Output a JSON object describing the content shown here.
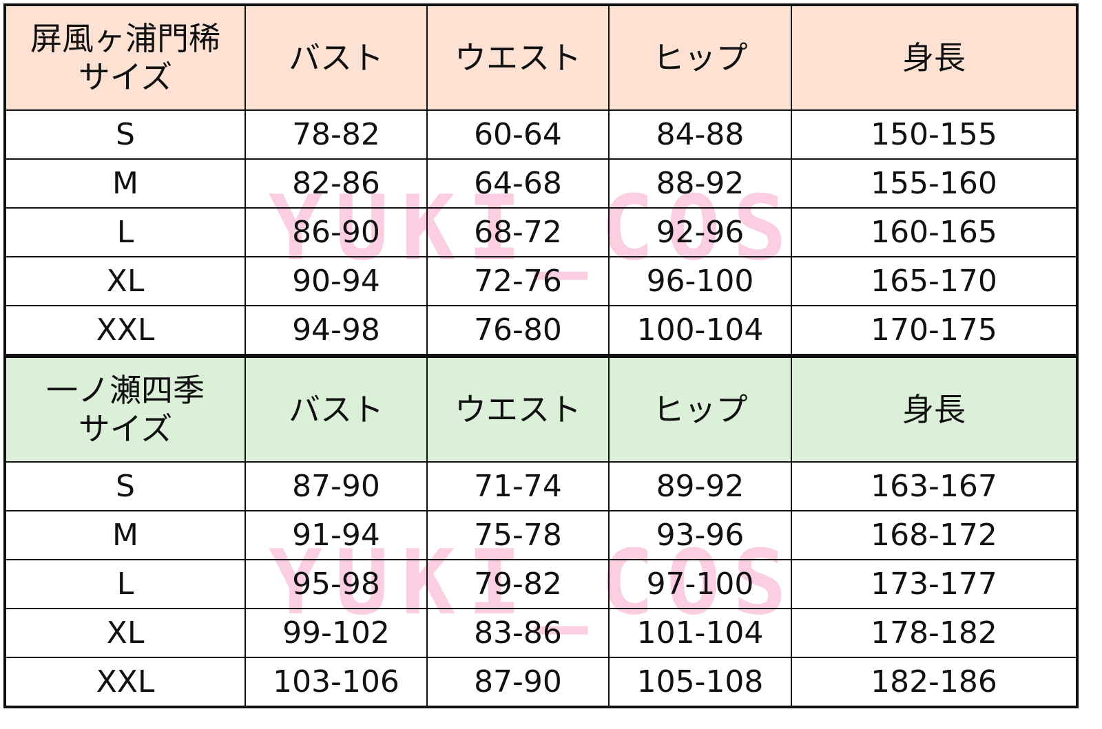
{
  "watermark": "YUKI_COS",
  "colors": {
    "header_top": "#fde1d3",
    "header_bottom": "#dcf0d9",
    "watermark": "#fbc6dd"
  },
  "tables": [
    {
      "title_line1": "屏風ヶ浦門稀",
      "title_line2": "サイズ",
      "columns": [
        "バスト",
        "ウエスト",
        "ヒップ",
        "身長"
      ],
      "rows": [
        [
          "S",
          "78-82",
          "60-64",
          "84-88",
          "150-155"
        ],
        [
          "M",
          "82-86",
          "64-68",
          "88-92",
          "155-160"
        ],
        [
          "L",
          "86-90",
          "68-72",
          "92-96",
          "160-165"
        ],
        [
          "XL",
          "90-94",
          "72-76",
          "96-100",
          "165-170"
        ],
        [
          "XXL",
          "94-98",
          "76-80",
          "100-104",
          "170-175"
        ]
      ]
    },
    {
      "title_line1": "一ノ瀬四季",
      "title_line2": "サイズ",
      "columns": [
        "バスト",
        "ウエスト",
        "ヒップ",
        "身長"
      ],
      "rows": [
        [
          "S",
          "87-90",
          "71-74",
          "89-92",
          "163-167"
        ],
        [
          "M",
          "91-94",
          "75-78",
          "93-96",
          "168-172"
        ],
        [
          "L",
          "95-98",
          "79-82",
          "97-100",
          "173-177"
        ],
        [
          "XL",
          "99-102",
          "83-86",
          "101-104",
          "178-182"
        ],
        [
          "XXL",
          "103-106",
          "87-90",
          "105-108",
          "182-186"
        ]
      ]
    }
  ]
}
